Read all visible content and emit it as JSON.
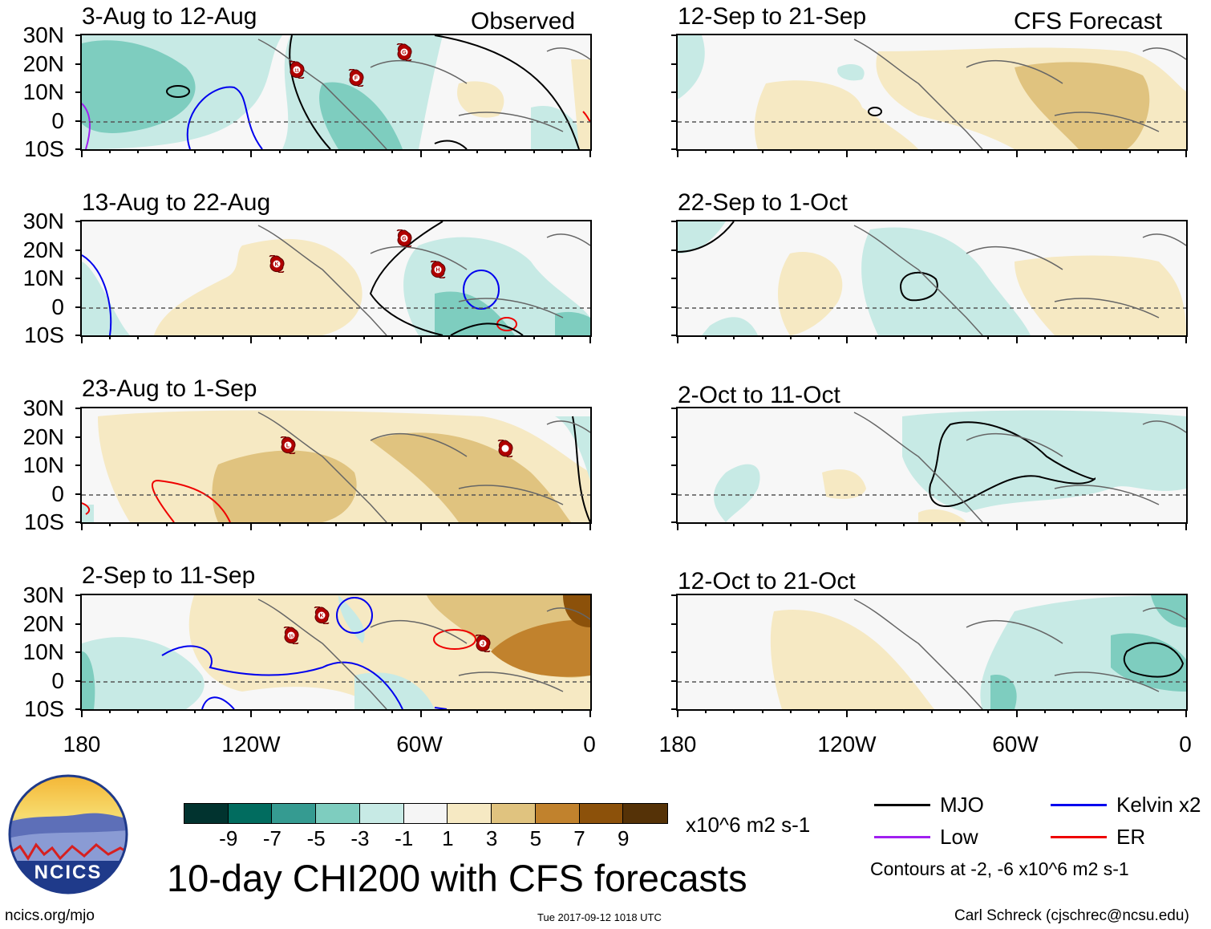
{
  "panels": [
    {
      "title": "3-Aug to 12-Aug",
      "source": "Observed"
    },
    {
      "title": "13-Aug to 22-Aug"
    },
    {
      "title": "23-Aug to 1-Sep"
    },
    {
      "title": "2-Sep to 11-Sep"
    },
    {
      "title": "12-Sep to 21-Sep",
      "source": "CFS Forecast"
    },
    {
      "title": "22-Sep to 1-Oct"
    },
    {
      "title": "2-Oct to 11-Oct"
    },
    {
      "title": "12-Oct to 21-Oct"
    }
  ],
  "latitude_labels": [
    "30N",
    "20N",
    "10N",
    "0",
    "10S"
  ],
  "longitude_labels": [
    "180",
    "120W",
    "60W",
    "0"
  ],
  "storm_markers": [
    {
      "panel": 0,
      "label": "G",
      "lon": -66,
      "lat": 24
    },
    {
      "panel": 0,
      "label": "11",
      "lon": -104,
      "lat": 18
    },
    {
      "panel": 0,
      "label": "F",
      "lon": -83,
      "lat": 15
    },
    {
      "panel": 1,
      "label": "G",
      "lon": -66,
      "lat": 24
    },
    {
      "panel": 1,
      "label": "K",
      "lon": -111,
      "lat": 15
    },
    {
      "panel": 1,
      "label": "H",
      "lon": -54,
      "lat": 13
    },
    {
      "panel": 2,
      "label": "L",
      "lon": -107,
      "lat": 17
    },
    {
      "panel": 2,
      "label": "",
      "lon": -30,
      "lat": 16
    },
    {
      "panel": 3,
      "label": "K",
      "lon": -95,
      "lat": 23
    },
    {
      "panel": 3,
      "label": "15",
      "lon": -106,
      "lat": 16
    },
    {
      "panel": 3,
      "label": "J",
      "lon": -38,
      "lat": 13
    }
  ],
  "colorbar": {
    "colors": [
      "#01332f",
      "#016c5f",
      "#359b91",
      "#7ecdbf",
      "#c7eae5",
      "#f5f5f5",
      "#f6e9c3",
      "#e0c37f",
      "#c1822d",
      "#8c510a",
      "#553207"
    ],
    "tick_labels": [
      "-9",
      "-7",
      "-5",
      "-3",
      "-1",
      "1",
      "3",
      "5",
      "7",
      "9"
    ],
    "units": "x10^6 m2 s-1"
  },
  "legend": {
    "items": [
      {
        "label": "MJO",
        "color": "#000000"
      },
      {
        "label": "Kelvin x2",
        "color": "#0000ee"
      },
      {
        "label": "Low",
        "color": "#a020f0"
      },
      {
        "label": "ER",
        "color": "#ee0000"
      }
    ],
    "note": "Contours at -2, -6 x10^6 m2 s-1"
  },
  "main_title": "10-day CHI200 with CFS forecasts",
  "logo_text": "NCICS",
  "footer": {
    "url": "ncics.org/mjo",
    "timestamp": "Tue 2017-09-12 1018 UTC",
    "author": "Carl Schreck (cjschrec@ncsu.edu)"
  }
}
